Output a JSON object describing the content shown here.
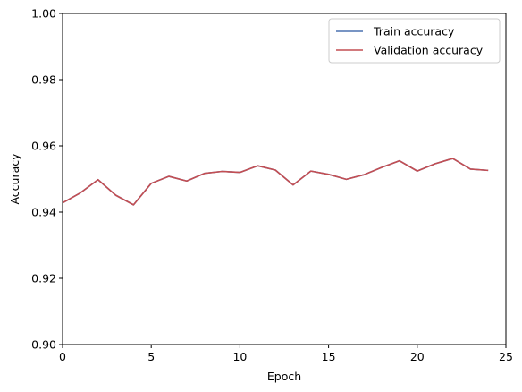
{
  "chart_data": {
    "type": "line",
    "title": "",
    "xlabel": "Epoch",
    "ylabel": "Accuracy",
    "xlim": [
      0,
      25
    ],
    "ylim": [
      0.9,
      1.0
    ],
    "xticks": [
      0,
      5,
      10,
      15,
      20,
      25
    ],
    "yticks": [
      0.9,
      0.92,
      0.94,
      0.96,
      0.98,
      1.0
    ],
    "xtick_labels": [
      "0",
      "5",
      "10",
      "15",
      "20",
      "25"
    ],
    "ytick_labels": [
      "0.90",
      "0.92",
      "0.94",
      "0.96",
      "0.98",
      "1.00"
    ],
    "grid": false,
    "legend_position": "top-right",
    "x": [
      0,
      1,
      2,
      3,
      4,
      5,
      6,
      7,
      8,
      9,
      10,
      11,
      12,
      13,
      14,
      15,
      16,
      17,
      18,
      19,
      20,
      21,
      22,
      23,
      24
    ],
    "series": [
      {
        "name": "Train accuracy",
        "color": "#4c72b0",
        "values": [
          0.9428,
          0.9458,
          0.9498,
          0.9451,
          0.9422,
          0.9487,
          0.9508,
          0.9494,
          0.9517,
          0.9523,
          0.952,
          0.954,
          0.9527,
          0.9482,
          0.9524,
          0.9514,
          0.9499,
          0.9513,
          0.9535,
          0.9555,
          0.9524,
          0.9546,
          0.9562,
          0.953,
          0.9526
        ]
      },
      {
        "name": "Validation accuracy",
        "color": "#c44e52",
        "values": [
          0.9428,
          0.9458,
          0.9498,
          0.9451,
          0.9422,
          0.9487,
          0.9508,
          0.9494,
          0.9517,
          0.9523,
          0.952,
          0.954,
          0.9527,
          0.9482,
          0.9524,
          0.9514,
          0.9499,
          0.9513,
          0.9535,
          0.9555,
          0.9524,
          0.9546,
          0.9562,
          0.953,
          0.9526
        ]
      }
    ]
  }
}
